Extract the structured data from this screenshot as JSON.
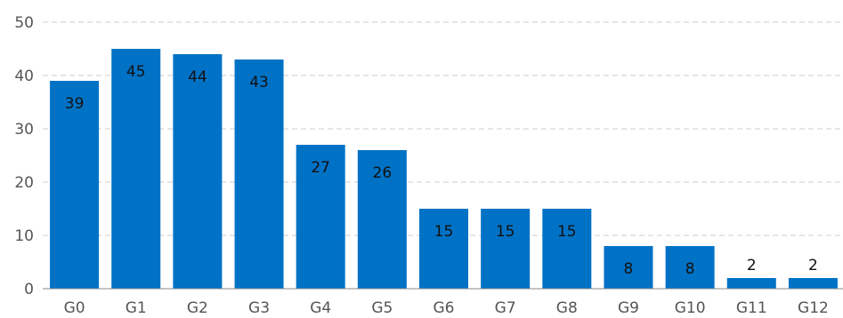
{
  "chart_data": {
    "type": "bar",
    "categories": [
      "G0",
      "G1",
      "G2",
      "G3",
      "G4",
      "G5",
      "G6",
      "G7",
      "G8",
      "G9",
      "G10",
      "G11",
      "G12"
    ],
    "values": [
      39,
      45,
      44,
      43,
      27,
      26,
      15,
      15,
      15,
      8,
      8,
      2,
      2
    ],
    "ylim": [
      0,
      50
    ],
    "yticks": [
      0,
      10,
      20,
      30,
      40,
      50
    ],
    "grid": true,
    "data_labels": true,
    "colors": {
      "bar": "#0072c6",
      "grid": "#cccccc",
      "axis": "#888888"
    }
  }
}
